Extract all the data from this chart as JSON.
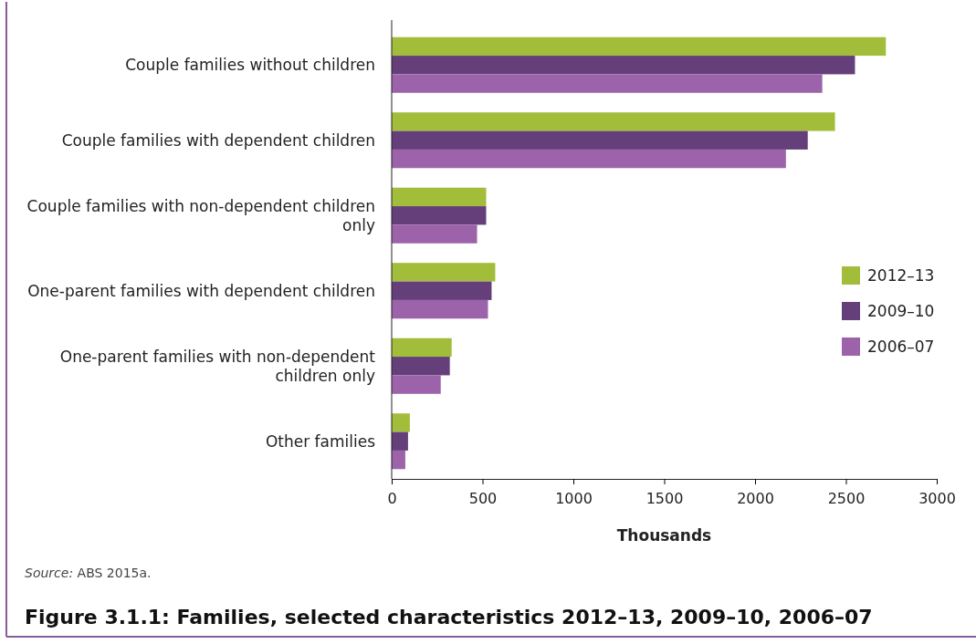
{
  "chart_data": {
    "type": "bar",
    "orientation": "horizontal",
    "title": "Figure 3.1.1: Families, selected characteristics 2012–13, 2009–10, 2006–07",
    "xlabel": "Thousands",
    "categories": [
      "Couple families without children",
      "Couple families with dependent children",
      "Couple families with non-dependent children only",
      "One-parent families with dependent children",
      "One-parent families with non-dependent children only",
      "Other families"
    ],
    "series": [
      {
        "name": "2012–13",
        "color": "#a2bd3a",
        "values": [
          2720,
          2440,
          520,
          570,
          330,
          100
        ]
      },
      {
        "name": "2009–10",
        "color": "#643f7a",
        "values": [
          2550,
          2290,
          520,
          550,
          320,
          90
        ]
      },
      {
        "name": "2006–07",
        "color": "#9c63aa",
        "values": [
          2370,
          2170,
          470,
          530,
          270,
          75
        ]
      }
    ],
    "xlim": [
      0,
      3000
    ],
    "xticks": [
      0,
      500,
      1000,
      1500,
      2000,
      2500,
      3000
    ],
    "grid": false,
    "legend": "right",
    "annotations": [
      "Source: ABS 2015a."
    ]
  }
}
